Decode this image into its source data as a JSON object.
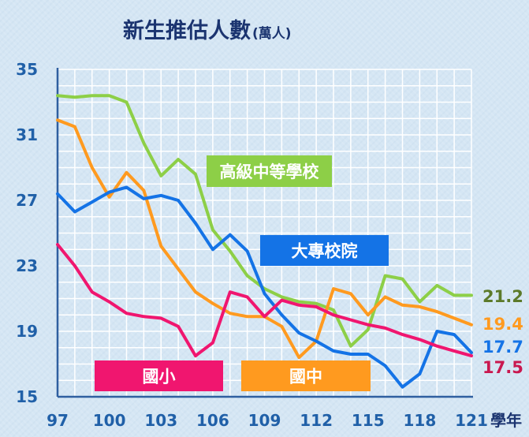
{
  "chart_data": {
    "type": "line",
    "title": "新生推估人數",
    "title_unit": "(萬人)",
    "xlabel": "學年",
    "x": [
      97,
      98,
      99,
      100,
      101,
      102,
      103,
      104,
      105,
      106,
      107,
      108,
      109,
      110,
      111,
      112,
      113,
      114,
      115,
      116,
      117,
      118,
      119,
      120,
      121
    ],
    "xticks": [
      "97",
      "100",
      "103",
      "106",
      "109",
      "112",
      "115",
      "118",
      "121"
    ],
    "yticks": [
      "15",
      "19",
      "23",
      "27",
      "31",
      "35"
    ],
    "ylim": [
      15,
      35
    ],
    "grid": true,
    "series": [
      {
        "name": "高級中等學校",
        "color": "#8dcf47",
        "end_label": "21.2",
        "end_label_color": "#5c7a2a",
        "values": [
          33.4,
          33.3,
          33.4,
          33.4,
          33.0,
          30.5,
          28.5,
          29.5,
          28.6,
          25.2,
          23.9,
          22.4,
          21.6,
          21.1,
          20.8,
          20.7,
          20.3,
          18.1,
          19.1,
          22.4,
          22.2,
          20.8,
          21.8,
          21.2,
          21.2
        ]
      },
      {
        "name": "國中",
        "color": "#ff9a1f",
        "end_label": "19.4",
        "end_label_color": "#ff9a1f",
        "values": [
          31.9,
          31.5,
          29.0,
          27.2,
          28.7,
          27.6,
          24.2,
          22.8,
          21.4,
          20.7,
          20.1,
          19.9,
          19.9,
          19.3,
          17.4,
          18.4,
          21.6,
          21.3,
          20.0,
          21.1,
          20.6,
          20.5,
          20.2,
          19.8,
          19.4
        ]
      },
      {
        "name": "大專校院",
        "color": "#1473e6",
        "end_label": "17.7",
        "end_label_color": "#1473e6",
        "values": [
          27.4,
          26.3,
          26.9,
          27.5,
          27.8,
          27.1,
          27.3,
          27.0,
          25.6,
          24.0,
          24.9,
          23.9,
          21.3,
          20.0,
          18.9,
          18.4,
          17.8,
          17.6,
          17.6,
          16.9,
          15.6,
          16.4,
          19.0,
          18.8,
          17.7
        ]
      },
      {
        "name": "國小",
        "color": "#f0166f",
        "end_label": "17.5",
        "end_label_color": "#c9184f",
        "values": [
          24.3,
          23.0,
          21.4,
          20.8,
          20.1,
          19.9,
          19.8,
          19.3,
          17.5,
          18.3,
          21.4,
          21.1,
          19.9,
          20.9,
          20.6,
          20.5,
          20.0,
          19.7,
          19.4,
          19.2,
          18.8,
          18.5,
          18.1,
          17.8,
          17.5
        ]
      }
    ],
    "legend_boxes": [
      {
        "text": "高級中等學校",
        "color": "#8dcf47"
      },
      {
        "text": "大專校院",
        "color": "#1473e6"
      },
      {
        "text": "國小",
        "color": "#f0166f"
      },
      {
        "text": "國中",
        "color": "#ff9a1f"
      }
    ]
  }
}
